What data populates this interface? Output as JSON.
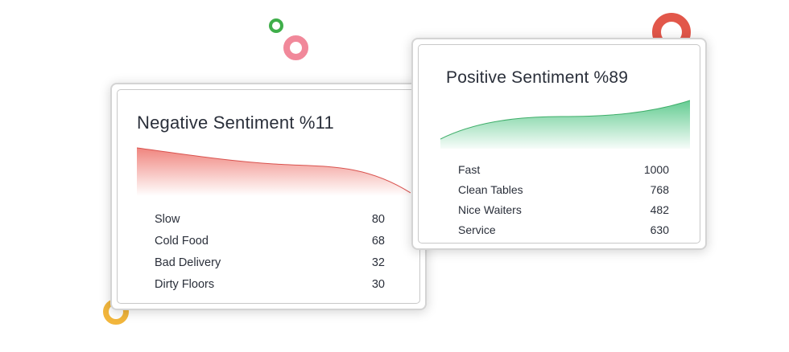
{
  "decorations": {
    "ring_green": "#3fae4a",
    "ring_pink": "#f1889a",
    "ring_red": "#e2574a",
    "ring_yellow": "#f2b63c"
  },
  "negative": {
    "title": "Negative Sentiment %11",
    "color": "#ef7f78",
    "items": [
      {
        "label": "Slow",
        "value": "80"
      },
      {
        "label": "Cold Food",
        "value": "68"
      },
      {
        "label": "Bad Delivery",
        "value": "32"
      },
      {
        "label": "Dirty Floors",
        "value": "30"
      }
    ]
  },
  "positive": {
    "title": "Positive Sentiment %89",
    "color": "#5cc98c",
    "items": [
      {
        "label": "Fast",
        "value": "1000"
      },
      {
        "label": "Clean Tables",
        "value": "768"
      },
      {
        "label": "Nice Waiters",
        "value": "482"
      },
      {
        "label": "Service",
        "value": "630"
      }
    ]
  }
}
